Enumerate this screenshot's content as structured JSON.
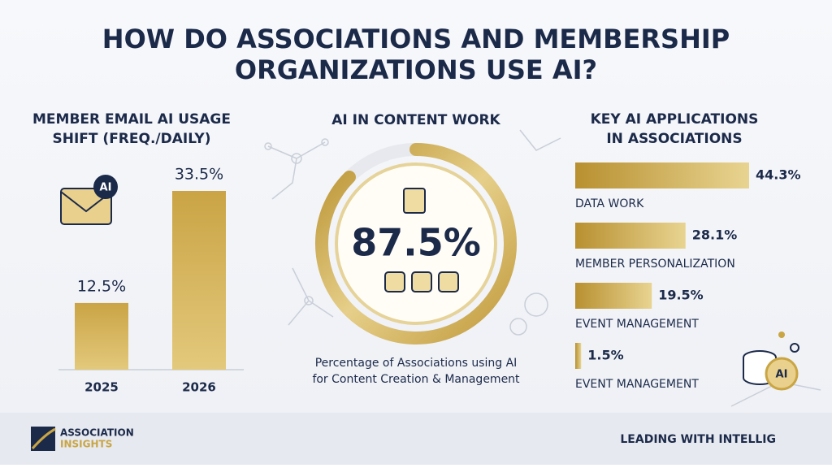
{
  "title": [
    "HOW DO ASSOCIATIONS AND MEMBERSHIP",
    "ORGANIZATIONS USE AI?"
  ],
  "chart_data": [
    {
      "type": "bar",
      "title": [
        "MEMBER EMAIL AI USAGE",
        "SHIFT (FREQ./DAILY)"
      ],
      "categories": [
        "2025",
        "2026"
      ],
      "values": [
        12.5,
        33.5
      ],
      "value_labels": [
        "12.5%",
        "33.5%"
      ],
      "icon_badge": "AI",
      "color": "#c9a544"
    },
    {
      "type": "donut",
      "title": [
        "AI IN CONTENT WORK"
      ],
      "value": 87.5,
      "value_label": "87.5%",
      "caption": [
        "Percentage of Associations using AI",
        "for Content Creation & Management"
      ],
      "color": "#c9a544"
    },
    {
      "type": "hbar",
      "title": [
        "KEY AI APPLICATIONS",
        "IN ASSOCIATIONS"
      ],
      "categories": [
        "DATA WORK",
        "MEMBER PERSONALIZATION",
        "EVENT MANAGEMENT",
        "EVENT MANAGEMENT"
      ],
      "values": [
        44.3,
        28.1,
        19.5,
        1.5
      ],
      "value_labels": [
        "44.3%",
        "28.1%",
        "19.5%",
        "1.5%"
      ],
      "icon_badge": "AI",
      "color": "#c9a544"
    }
  ],
  "footer": {
    "brand": [
      "ASSOCIATION",
      "INSIGHTS"
    ],
    "tagline": "LEADING WITH INTELLIG"
  }
}
